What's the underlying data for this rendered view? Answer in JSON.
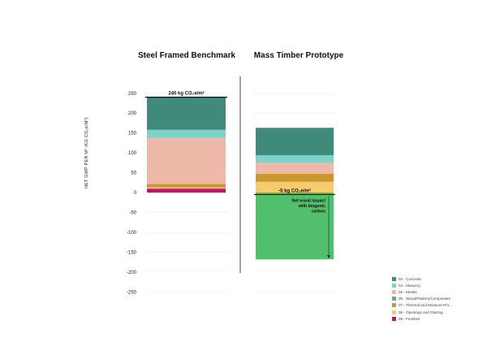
{
  "chart_data": {
    "type": "bar",
    "stacked": true,
    "ylabel": "NET GWP PER M² (KG CO₂e/M²)",
    "ylim": [
      -250,
      250
    ],
    "yticks": [
      250,
      200,
      150,
      100,
      50,
      0,
      -50,
      -100,
      -150,
      -200,
      -250
    ],
    "panels": [
      {
        "title": "Steel Framed Benchmark",
        "segments": [
          {
            "category": "09 - Finishes",
            "value": 10
          },
          {
            "category": "08 - Openings and Glazing",
            "value": 3
          },
          {
            "category": "07 - Thermal and Moisture Pro...",
            "value": 9
          },
          {
            "category": "05 - Metals",
            "value": 30
          },
          {
            "category": "05 - Metals",
            "value": 86
          },
          {
            "category": "04 - Masonry",
            "value": 20
          },
          {
            "category": "03 - Concrete",
            "value": 82
          }
        ],
        "total_label": "240 kg CO₂e/m²",
        "total": 240
      },
      {
        "title": "Mass Timber Prototype",
        "segments": [
          {
            "category": "06 - Wood/Plastics/Composites",
            "value": -168
          },
          {
            "category": "08 - Openings and Glazing",
            "value": 27
          },
          {
            "category": "07 - Thermal and Moisture Pro...",
            "value": 20
          },
          {
            "category": "05 - Metals",
            "value": 28
          },
          {
            "category": "04 - Masonry",
            "value": 19
          },
          {
            "category": "03 - Concrete",
            "value": 69
          }
        ],
        "total_label": "-5 kg CO₂e/m²",
        "total": -5,
        "annotation": "Net wood impact with biogenic carbon"
      }
    ],
    "legend": [
      {
        "label": "03 - Concrete",
        "color": "#3f8a7a"
      },
      {
        "label": "04 - Masonry",
        "color": "#7dd3c8"
      },
      {
        "label": "05 - Metals",
        "color": "#eeb9a8"
      },
      {
        "label": "06 - Wood/Plastics/Composites",
        "color": "#52bf6d"
      },
      {
        "label": "07 - Thermal and Moisture Pro...",
        "color": "#c9982e"
      },
      {
        "label": "08 - Openings and Glazing",
        "color": "#f7ca6e"
      },
      {
        "label": "09 - Finishes",
        "color": "#b81b68"
      }
    ]
  }
}
